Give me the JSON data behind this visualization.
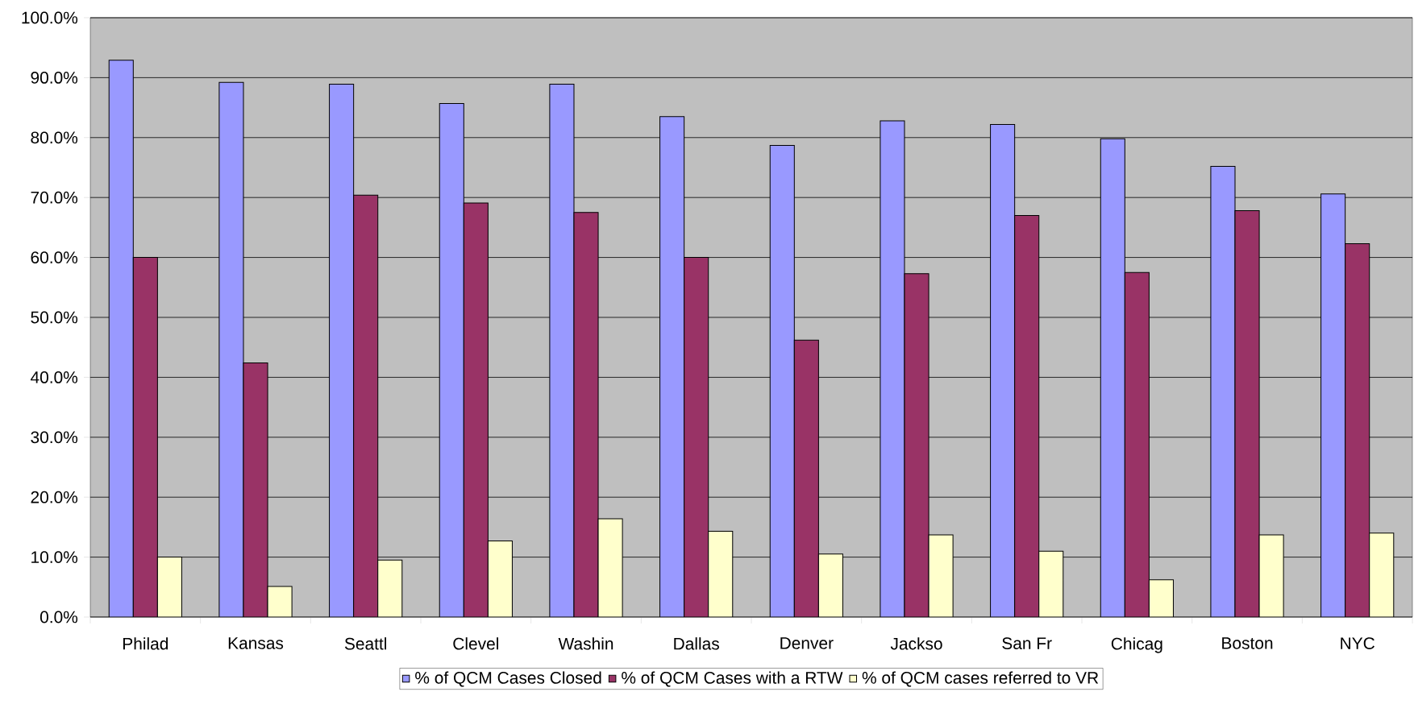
{
  "chart_data": {
    "type": "bar",
    "categories": [
      "Philad",
      "Kansas",
      "Seattl",
      "Clevel",
      "Washin",
      "Dallas",
      "Denver",
      "Jackso",
      "San Fr",
      "Chicag",
      "Boston",
      "NYC"
    ],
    "series": [
      {
        "name": "% of QCM Cases Closed",
        "color": "#9999ff",
        "values": [
          92.9,
          89.2,
          88.9,
          85.7,
          88.9,
          83.5,
          78.7,
          82.8,
          82.2,
          79.8,
          75.2,
          70.6
        ]
      },
      {
        "name": "% of QCM Cases with a RTW",
        "color": "#993366",
        "values": [
          60.0,
          42.4,
          70.4,
          69.1,
          67.5,
          60.0,
          46.2,
          57.3,
          67.0,
          57.5,
          67.8,
          62.3
        ]
      },
      {
        "name": "% of QCM cases referred to VR",
        "color": "#ffffcc",
        "values": [
          10.0,
          5.1,
          9.5,
          12.7,
          16.4,
          14.3,
          10.5,
          13.7,
          11.0,
          6.2,
          13.7,
          14.0
        ]
      }
    ],
    "ylim": [
      0,
      100
    ],
    "yticks": [
      {
        "value": 0,
        "label": "0.0%"
      },
      {
        "value": 10,
        "label": "10.0%"
      },
      {
        "value": 20,
        "label": "20.0%"
      },
      {
        "value": 30,
        "label": "30.0%"
      },
      {
        "value": 40,
        "label": "40.0%"
      },
      {
        "value": 50,
        "label": "50.0%"
      },
      {
        "value": 60,
        "label": "60.0%"
      },
      {
        "value": 70,
        "label": "70.0%"
      },
      {
        "value": 80,
        "label": "80.0%"
      },
      {
        "value": 90,
        "label": "90.0%"
      },
      {
        "value": 100,
        "label": "100.0%"
      }
    ],
    "grid": "y",
    "legend": "bottom"
  }
}
